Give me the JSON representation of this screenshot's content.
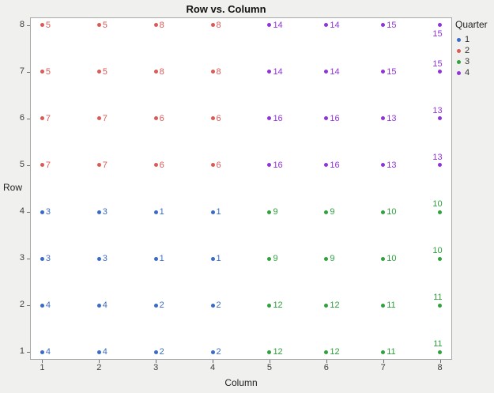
{
  "chart_data": {
    "type": "scatter",
    "title": "Row vs. Column",
    "xlabel": "Column",
    "ylabel": "Row",
    "xlim": [
      0.8,
      8.2
    ],
    "ylim": [
      0.85,
      8.15
    ],
    "xticks": [
      "1",
      "2",
      "3",
      "4",
      "5",
      "6",
      "7",
      "8"
    ],
    "yticks": [
      "1",
      "2",
      "3",
      "4",
      "5",
      "6",
      "7",
      "8"
    ],
    "colors": {
      "background": "#F0F0EE",
      "plot_background": "#FFFFFF",
      "plot_border": "#A8A8A8",
      "tick_text": "#3c3c3c"
    },
    "quarter_colors": {
      "1": "#3B6BC6",
      "2": "#DA5A56",
      "3": "#2FA13D",
      "4": "#8F35D8"
    },
    "legend": {
      "title": "Quarter",
      "items": [
        {
          "label": "1",
          "color": "#3B6BC6"
        },
        {
          "label": "2",
          "color": "#DA5A56"
        },
        {
          "label": "3",
          "color": "#2FA13D"
        },
        {
          "label": "4",
          "color": "#8F35D8"
        }
      ]
    },
    "points": [
      {
        "x": 1,
        "y": 8,
        "quarter": 2,
        "label": "5",
        "label_pos": "right"
      },
      {
        "x": 2,
        "y": 8,
        "quarter": 2,
        "label": "5",
        "label_pos": "right"
      },
      {
        "x": 3,
        "y": 8,
        "quarter": 2,
        "label": "8",
        "label_pos": "right"
      },
      {
        "x": 4,
        "y": 8,
        "quarter": 2,
        "label": "8",
        "label_pos": "right"
      },
      {
        "x": 5,
        "y": 8,
        "quarter": 4,
        "label": "14",
        "label_pos": "right"
      },
      {
        "x": 6,
        "y": 8,
        "quarter": 4,
        "label": "14",
        "label_pos": "right"
      },
      {
        "x": 7,
        "y": 8,
        "quarter": 4,
        "label": "15",
        "label_pos": "right"
      },
      {
        "x": 8,
        "y": 8,
        "quarter": 4,
        "label": "15",
        "label_pos": "below"
      },
      {
        "x": 1,
        "y": 7,
        "quarter": 2,
        "label": "5",
        "label_pos": "right"
      },
      {
        "x": 2,
        "y": 7,
        "quarter": 2,
        "label": "5",
        "label_pos": "right"
      },
      {
        "x": 3,
        "y": 7,
        "quarter": 2,
        "label": "8",
        "label_pos": "right"
      },
      {
        "x": 4,
        "y": 7,
        "quarter": 2,
        "label": "8",
        "label_pos": "right"
      },
      {
        "x": 5,
        "y": 7,
        "quarter": 4,
        "label": "14",
        "label_pos": "right"
      },
      {
        "x": 6,
        "y": 7,
        "quarter": 4,
        "label": "14",
        "label_pos": "right"
      },
      {
        "x": 7,
        "y": 7,
        "quarter": 4,
        "label": "15",
        "label_pos": "right"
      },
      {
        "x": 8,
        "y": 7,
        "quarter": 4,
        "label": "15",
        "label_pos": "above"
      },
      {
        "x": 1,
        "y": 6,
        "quarter": 2,
        "label": "7",
        "label_pos": "right"
      },
      {
        "x": 2,
        "y": 6,
        "quarter": 2,
        "label": "7",
        "label_pos": "right"
      },
      {
        "x": 3,
        "y": 6,
        "quarter": 2,
        "label": "6",
        "label_pos": "right"
      },
      {
        "x": 4,
        "y": 6,
        "quarter": 2,
        "label": "6",
        "label_pos": "right"
      },
      {
        "x": 5,
        "y": 6,
        "quarter": 4,
        "label": "16",
        "label_pos": "right"
      },
      {
        "x": 6,
        "y": 6,
        "quarter": 4,
        "label": "16",
        "label_pos": "right"
      },
      {
        "x": 7,
        "y": 6,
        "quarter": 4,
        "label": "13",
        "label_pos": "right"
      },
      {
        "x": 8,
        "y": 6,
        "quarter": 4,
        "label": "13",
        "label_pos": "above"
      },
      {
        "x": 1,
        "y": 5,
        "quarter": 2,
        "label": "7",
        "label_pos": "right"
      },
      {
        "x": 2,
        "y": 5,
        "quarter": 2,
        "label": "7",
        "label_pos": "right"
      },
      {
        "x": 3,
        "y": 5,
        "quarter": 2,
        "label": "6",
        "label_pos": "right"
      },
      {
        "x": 4,
        "y": 5,
        "quarter": 2,
        "label": "6",
        "label_pos": "right"
      },
      {
        "x": 5,
        "y": 5,
        "quarter": 4,
        "label": "16",
        "label_pos": "right"
      },
      {
        "x": 6,
        "y": 5,
        "quarter": 4,
        "label": "16",
        "label_pos": "right"
      },
      {
        "x": 7,
        "y": 5,
        "quarter": 4,
        "label": "13",
        "label_pos": "right"
      },
      {
        "x": 8,
        "y": 5,
        "quarter": 4,
        "label": "13",
        "label_pos": "above"
      },
      {
        "x": 1,
        "y": 4,
        "quarter": 1,
        "label": "3",
        "label_pos": "right"
      },
      {
        "x": 2,
        "y": 4,
        "quarter": 1,
        "label": "3",
        "label_pos": "right"
      },
      {
        "x": 3,
        "y": 4,
        "quarter": 1,
        "label": "1",
        "label_pos": "right"
      },
      {
        "x": 4,
        "y": 4,
        "quarter": 1,
        "label": "1",
        "label_pos": "right"
      },
      {
        "x": 5,
        "y": 4,
        "quarter": 3,
        "label": "9",
        "label_pos": "right"
      },
      {
        "x": 6,
        "y": 4,
        "quarter": 3,
        "label": "9",
        "label_pos": "right"
      },
      {
        "x": 7,
        "y": 4,
        "quarter": 3,
        "label": "10",
        "label_pos": "right"
      },
      {
        "x": 8,
        "y": 4,
        "quarter": 3,
        "label": "10",
        "label_pos": "above"
      },
      {
        "x": 1,
        "y": 3,
        "quarter": 1,
        "label": "3",
        "label_pos": "right"
      },
      {
        "x": 2,
        "y": 3,
        "quarter": 1,
        "label": "3",
        "label_pos": "right"
      },
      {
        "x": 3,
        "y": 3,
        "quarter": 1,
        "label": "1",
        "label_pos": "right"
      },
      {
        "x": 4,
        "y": 3,
        "quarter": 1,
        "label": "1",
        "label_pos": "right"
      },
      {
        "x": 5,
        "y": 3,
        "quarter": 3,
        "label": "9",
        "label_pos": "right"
      },
      {
        "x": 6,
        "y": 3,
        "quarter": 3,
        "label": "9",
        "label_pos": "right"
      },
      {
        "x": 7,
        "y": 3,
        "quarter": 3,
        "label": "10",
        "label_pos": "right"
      },
      {
        "x": 8,
        "y": 3,
        "quarter": 3,
        "label": "10",
        "label_pos": "above"
      },
      {
        "x": 1,
        "y": 2,
        "quarter": 1,
        "label": "4",
        "label_pos": "right"
      },
      {
        "x": 2,
        "y": 2,
        "quarter": 1,
        "label": "4",
        "label_pos": "right"
      },
      {
        "x": 3,
        "y": 2,
        "quarter": 1,
        "label": "2",
        "label_pos": "right"
      },
      {
        "x": 4,
        "y": 2,
        "quarter": 1,
        "label": "2",
        "label_pos": "right"
      },
      {
        "x": 5,
        "y": 2,
        "quarter": 3,
        "label": "12",
        "label_pos": "right"
      },
      {
        "x": 6,
        "y": 2,
        "quarter": 3,
        "label": "12",
        "label_pos": "right"
      },
      {
        "x": 7,
        "y": 2,
        "quarter": 3,
        "label": "11",
        "label_pos": "right"
      },
      {
        "x": 8,
        "y": 2,
        "quarter": 3,
        "label": "11",
        "label_pos": "above"
      },
      {
        "x": 1,
        "y": 1,
        "quarter": 1,
        "label": "4",
        "label_pos": "right"
      },
      {
        "x": 2,
        "y": 1,
        "quarter": 1,
        "label": "4",
        "label_pos": "right"
      },
      {
        "x": 3,
        "y": 1,
        "quarter": 1,
        "label": "2",
        "label_pos": "right"
      },
      {
        "x": 4,
        "y": 1,
        "quarter": 1,
        "label": "2",
        "label_pos": "right"
      },
      {
        "x": 5,
        "y": 1,
        "quarter": 3,
        "label": "12",
        "label_pos": "right"
      },
      {
        "x": 6,
        "y": 1,
        "quarter": 3,
        "label": "12",
        "label_pos": "right"
      },
      {
        "x": 7,
        "y": 1,
        "quarter": 3,
        "label": "11",
        "label_pos": "right"
      },
      {
        "x": 8,
        "y": 1,
        "quarter": 3,
        "label": "11",
        "label_pos": "above"
      }
    ]
  }
}
